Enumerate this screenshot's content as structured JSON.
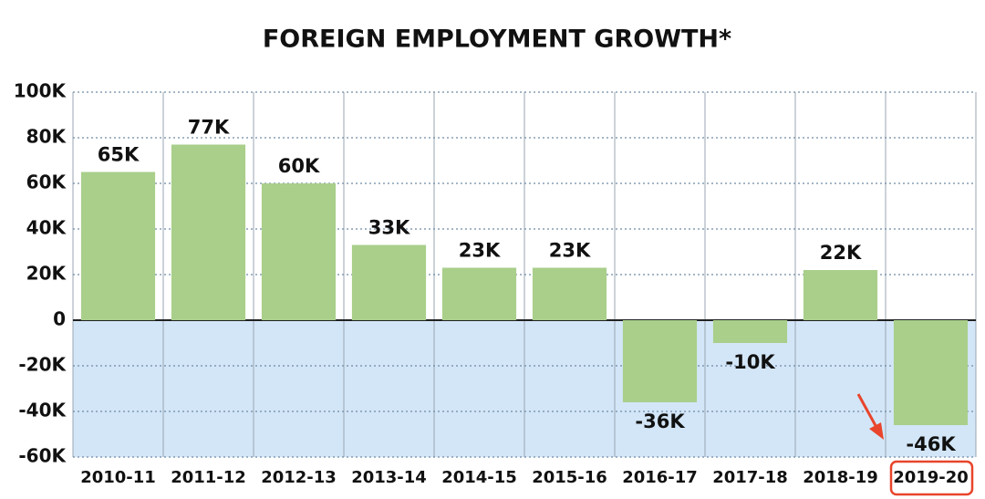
{
  "chart_data": {
    "type": "bar",
    "title": "FOREIGN EMPLOYMENT GROWTH*",
    "categories": [
      "2010-11",
      "2011-12",
      "2012-13",
      "2013-14",
      "2014-15",
      "2015-16",
      "2016-17",
      "2017-18",
      "2018-19",
      "2019-20"
    ],
    "values": [
      65,
      77,
      60,
      33,
      23,
      23,
      -36,
      -10,
      22,
      -46
    ],
    "value_labels": [
      "65K",
      "77K",
      "60K",
      "33K",
      "23K",
      "23K",
      "-36K",
      "-10K",
      "22K",
      "-46K"
    ],
    "color": "#a9cf8b",
    "negative_background": "#d3e6f8",
    "highlight_color": "#e8452c",
    "ylim": [
      -60,
      100
    ],
    "yticks": [
      {
        "value": -60,
        "label": "-60K"
      },
      {
        "value": -40,
        "label": "-40K"
      },
      {
        "value": -20,
        "label": "-20K"
      },
      0,
      {
        "value": 20,
        "label": "20K"
      },
      {
        "value": 40,
        "label": "40K"
      },
      {
        "value": 60,
        "label": "60K"
      },
      {
        "value": 80,
        "label": "80K"
      },
      {
        "value": 100,
        "label": "100K"
      }
    ],
    "grid": true
  }
}
